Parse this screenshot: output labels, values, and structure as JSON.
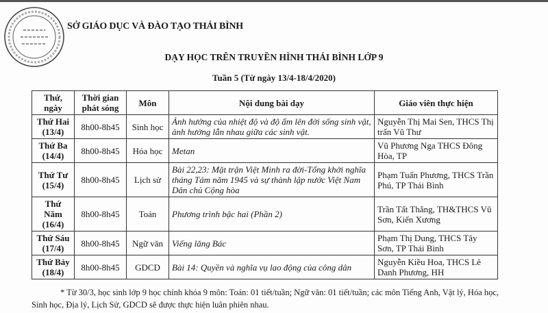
{
  "header": {
    "organization": "SỞ GIÁO DỤC VÀ ĐÀO TẠO THÁI BÌNH",
    "stamp_text": "CỘNG HÒA XÃ HỘI CHỦ NGHĨA VIỆT NAM - SỞ GIÁO DỤC VÀ ĐÀO TẠO - T. THÁI BÌNH",
    "title": "DẠY HỌC TRÊN TRUYỀN HÌNH THÁI BÌNH LỚP 9",
    "subtitle": "Tuần 5 (Từ ngày 13/4-18/4/2020)"
  },
  "table": {
    "columns": [
      "Thứ, ngày",
      "Thời gian phát sóng",
      "Môn",
      "Nội dung bài dạy",
      "Giáo viên thực hiện"
    ],
    "rows": [
      {
        "day": "Thứ Hai (13/4)",
        "time": "8h00-8h45",
        "subject": "Sinh học",
        "content": "Ảnh hưởng của nhiệt độ và độ ẩm lên đời sống sinh vật, ảnh hưởng lẫn nhau giữa các sinh vật.",
        "teacher": "Nguyễn Thị Mai Sen, THCS Thị trấn Vũ Thư"
      },
      {
        "day": "Thứ Ba (14/4)",
        "time": "8h00-8h45",
        "subject": "Hóa học",
        "content": "Metan",
        "teacher": "Vũ Phương Nga THCS Đông Hòa, TP"
      },
      {
        "day": "Thứ Tư (15/4)",
        "time": "8h00-8h45",
        "subject": "Lịch sử",
        "content": "Bài 22,23: Mặt trận Việt Minh ra đời-Tổng khởi nghĩa tháng Tám năm 1945 và sự thành lập nước Việt Nam Dân chủ Cộng hòa",
        "teacher": "Phạm Tuấn Phương, THCS Trần Phú, TP Thái Bình"
      },
      {
        "day": "Thứ Năm (16/4)",
        "time": "8h00-8h45",
        "subject": "Toán",
        "content": "Phương trình bậc hai (Phần 2)",
        "teacher": "Trần Tất Thắng, TH&THCS Vũ Sơn, Kiến Xương"
      },
      {
        "day": "Thứ Sáu (17/4)",
        "time": "8h00-8h45",
        "subject": "Ngữ văn",
        "content": "Viếng lăng Bác",
        "teacher": "Phạm Thị Dung, THCS Tây Sơn, TP Thái Bình"
      },
      {
        "day": "Thứ Bảy (18/4)",
        "time": "8h00-8h45",
        "subject": "GDCD",
        "content": "Bài 14: Quyền và nghĩa vụ lao động của công dân",
        "teacher": "Nguyễn Kiều Hoa, THCS Lê Danh Phương, HH"
      }
    ]
  },
  "footnote": "* Từ 30/3, học sinh lớp 9 học chính khóa 9 môn: Toán: 01 tiết/tuần; Ngữ văn: 01 tiết/tuần; các môn Tiếng Anh, Vật lý, Hóa học, Sinh học, Địa lý, Lịch Sử, GDCD sẽ được thực hiện luân phiên nhau."
}
